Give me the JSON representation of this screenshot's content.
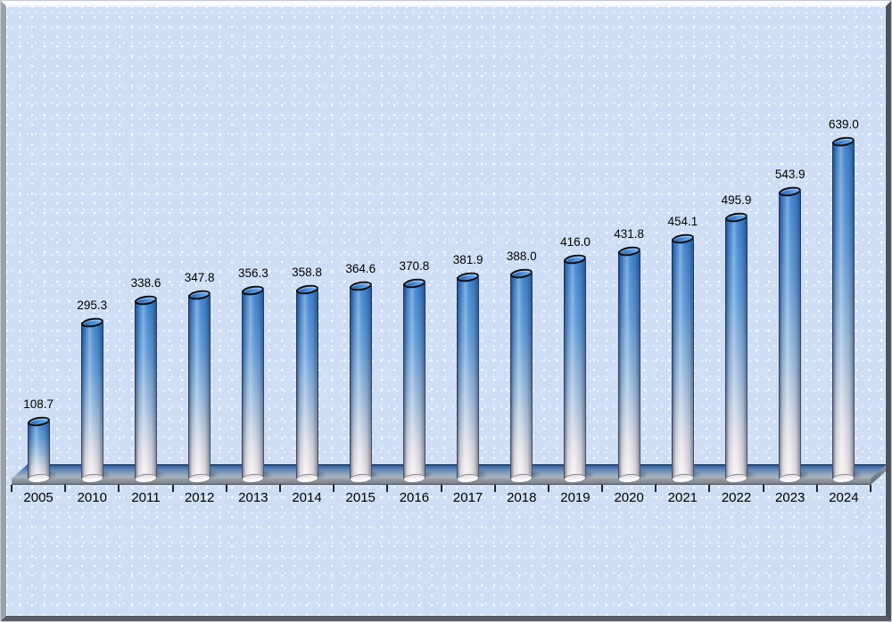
{
  "chart_data": {
    "type": "bar",
    "subtype": "3d-cylinder",
    "title": "",
    "xlabel": "",
    "ylabel": "",
    "categories": [
      "2005",
      "2010",
      "2011",
      "2012",
      "2013",
      "2014",
      "2015",
      "2016",
      "2017",
      "2018",
      "2019",
      "2020",
      "2021",
      "2022",
      "2023",
      "2024"
    ],
    "values": [
      108.7,
      295.3,
      338.6,
      347.8,
      356.3,
      358.8,
      364.6,
      370.8,
      381.9,
      388.0,
      416.0,
      431.8,
      454.1,
      495.9,
      543.9,
      639.0
    ],
    "value_labels": [
      "108.7",
      "295.3",
      "338.6",
      "347.8",
      "356.3",
      "358.8",
      "364.6",
      "370.8",
      "381.9",
      "388.0",
      "416.0",
      "431.8",
      "454.1",
      "495.9",
      "543.9",
      "639.0"
    ],
    "ylim": [
      0,
      675
    ],
    "grid": false,
    "legend": null,
    "value_labels_position": "above-bar",
    "x_axis": {
      "tick_count": 17,
      "labels_between_ticks": true
    }
  },
  "style": {
    "background_color": "#cfdef5",
    "background_dot_color": "#f4f8fe",
    "bar_top_color": "#4d8ed6",
    "bar_gradient_top": "#3d82cf",
    "bar_gradient_bottom": "#f8f0f1",
    "bar_outline_color": "#16223a",
    "platform_back_color": "#3f6aa6",
    "platform_front_color": "#8f969e",
    "tick_color": "#22262c",
    "label_color": "#000000",
    "frame_bevel_top": "#f7fafe",
    "frame_bevel_left": "#9aa2ac",
    "frame_bevel_right": "#4d535b",
    "frame_bevel_bottom": "#575d65"
  }
}
